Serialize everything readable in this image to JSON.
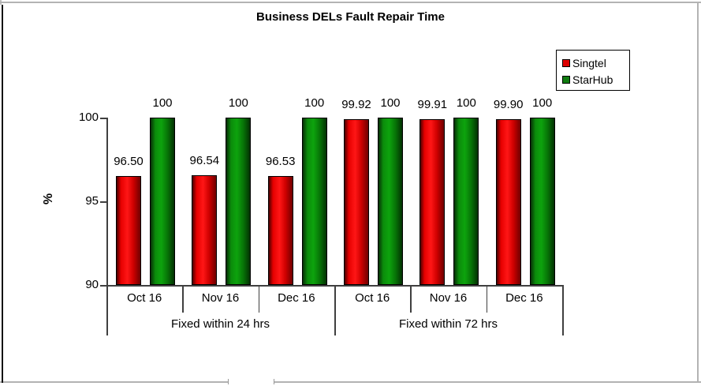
{
  "chart_data": {
    "type": "bar",
    "title": "Business DELs Fault Repair Time",
    "ylabel": "%",
    "ylim": [
      90,
      100
    ],
    "yticks": [
      90,
      95,
      100
    ],
    "grid": false,
    "legend": {
      "position": "top-right",
      "entries": [
        "Singtel",
        "StarHub"
      ]
    },
    "x_groups": [
      {
        "label": "Fixed within 24 hrs",
        "categories": [
          "Oct 16",
          "Nov 16",
          "Dec 16"
        ]
      },
      {
        "label": "Fixed within 72 hrs",
        "categories": [
          "Oct 16",
          "Nov 16",
          "Dec 16"
        ]
      }
    ],
    "categories": [
      "Oct 16",
      "Nov 16",
      "Dec 16",
      "Oct 16",
      "Nov 16",
      "Dec 16"
    ],
    "series": [
      {
        "name": "Singtel",
        "color": "#dd0000",
        "values": [
          96.5,
          96.54,
          96.53,
          99.92,
          99.91,
          99.9
        ],
        "data_labels": [
          "96.50",
          "96.54",
          "96.53",
          "99.92",
          "99.91",
          "99.90"
        ]
      },
      {
        "name": "StarHub",
        "color": "#107c10",
        "values": [
          100,
          100,
          100,
          100,
          100,
          100
        ],
        "data_labels": [
          "100",
          "100",
          "100",
          "100",
          "100",
          "100"
        ]
      }
    ]
  }
}
